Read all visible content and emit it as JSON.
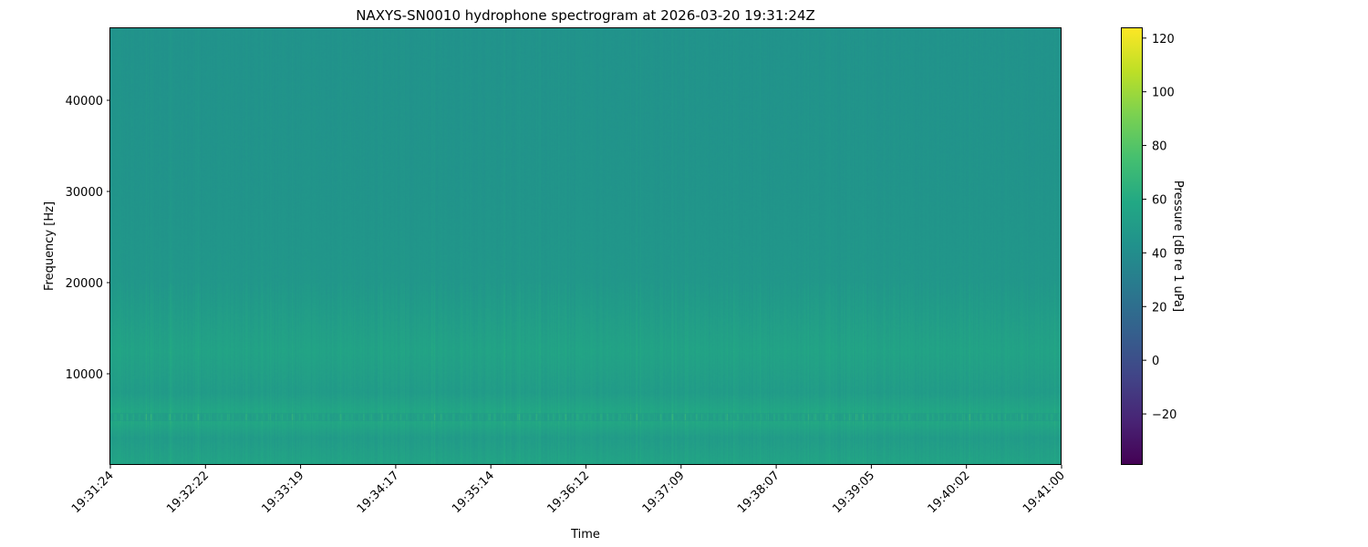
{
  "chart_data": {
    "type": "heatmap",
    "title": "NAXYS-SN0010 hydrophone spectrogram at 2026-03-20 19:31:24Z",
    "xlabel": "Time",
    "ylabel": "Frequency [Hz]",
    "colorbar_label": "Pressure [dB re 1 uPa]",
    "colormap": "viridis",
    "x_ticks": [
      "19:31:24",
      "19:32:22",
      "19:33:19",
      "19:34:17",
      "19:35:14",
      "19:36:12",
      "19:37:09",
      "19:38:07",
      "19:39:05",
      "19:40:02",
      "19:41:00"
    ],
    "y_ticks": [
      10000,
      20000,
      30000,
      40000
    ],
    "ylim": [
      0,
      48000
    ],
    "clim": [
      -39,
      124
    ],
    "colorbar_ticks": [
      -20,
      0,
      20,
      40,
      60,
      80,
      100,
      120
    ],
    "frequency_band_levels_db": [
      {
        "freq_hz": 500,
        "db": 55
      },
      {
        "freq_hz": 3000,
        "db": 50
      },
      {
        "freq_hz": 5200,
        "db": 60
      },
      {
        "freq_hz": 8000,
        "db": 50
      },
      {
        "freq_hz": 12500,
        "db": 55
      },
      {
        "freq_hz": 20000,
        "db": 47
      },
      {
        "freq_hz": 30000,
        "db": 45
      },
      {
        "freq_hz": 48000,
        "db": 44
      }
    ]
  }
}
